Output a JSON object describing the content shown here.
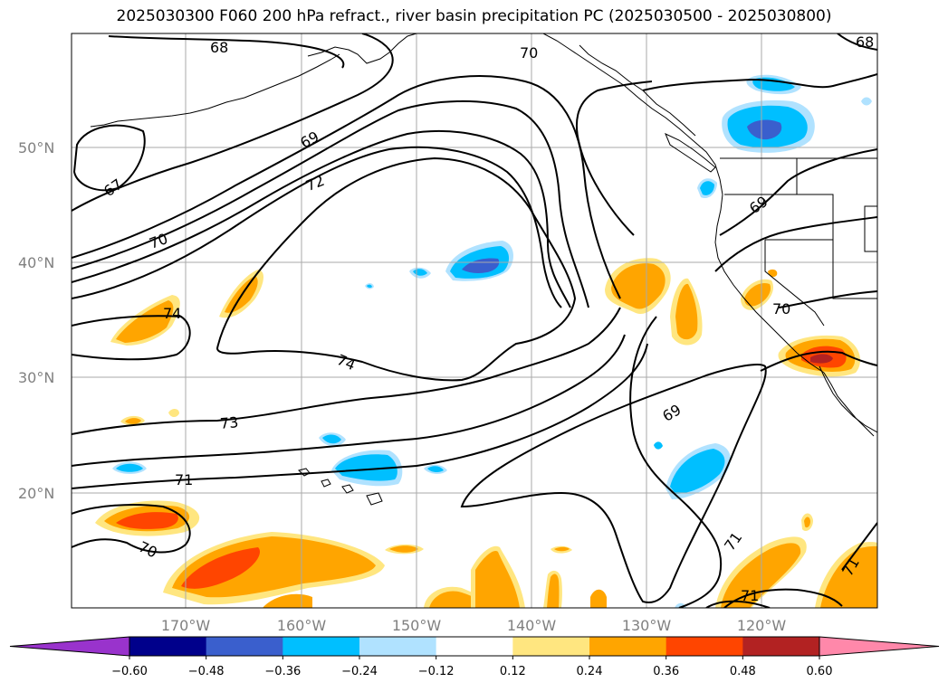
{
  "title": "2025030300 F060 200 hPa refract., river basin precipitation PC (2025030500 - 2025030800)",
  "map": {
    "lat_labels": [
      "50°N",
      "40°N",
      "30°N",
      "20°N"
    ],
    "lon_labels": [
      "170°W",
      "160°W",
      "150°W",
      "140°W",
      "130°W",
      "120°W"
    ],
    "contour_labels": [
      "68",
      "70",
      "68",
      "67",
      "69",
      "72",
      "70",
      "74",
      "69",
      "74",
      "73",
      "69",
      "71",
      "70",
      "70",
      "71",
      "71"
    ]
  },
  "colorbar": {
    "colors": [
      "#9933cc",
      "#00008b",
      "#3a5fcd",
      "#00bfff",
      "#b0e2ff",
      "#ffffff",
      "#ffe680",
      "#ffa500",
      "#ff4500",
      "#b22222",
      "#ff88aa"
    ],
    "tick_labels": [
      "−0.60",
      "−0.48",
      "−0.36",
      "−0.24",
      "−0.12",
      "0.12",
      "0.24",
      "0.36",
      "0.48",
      "0.60"
    ],
    "extend": "both"
  }
}
